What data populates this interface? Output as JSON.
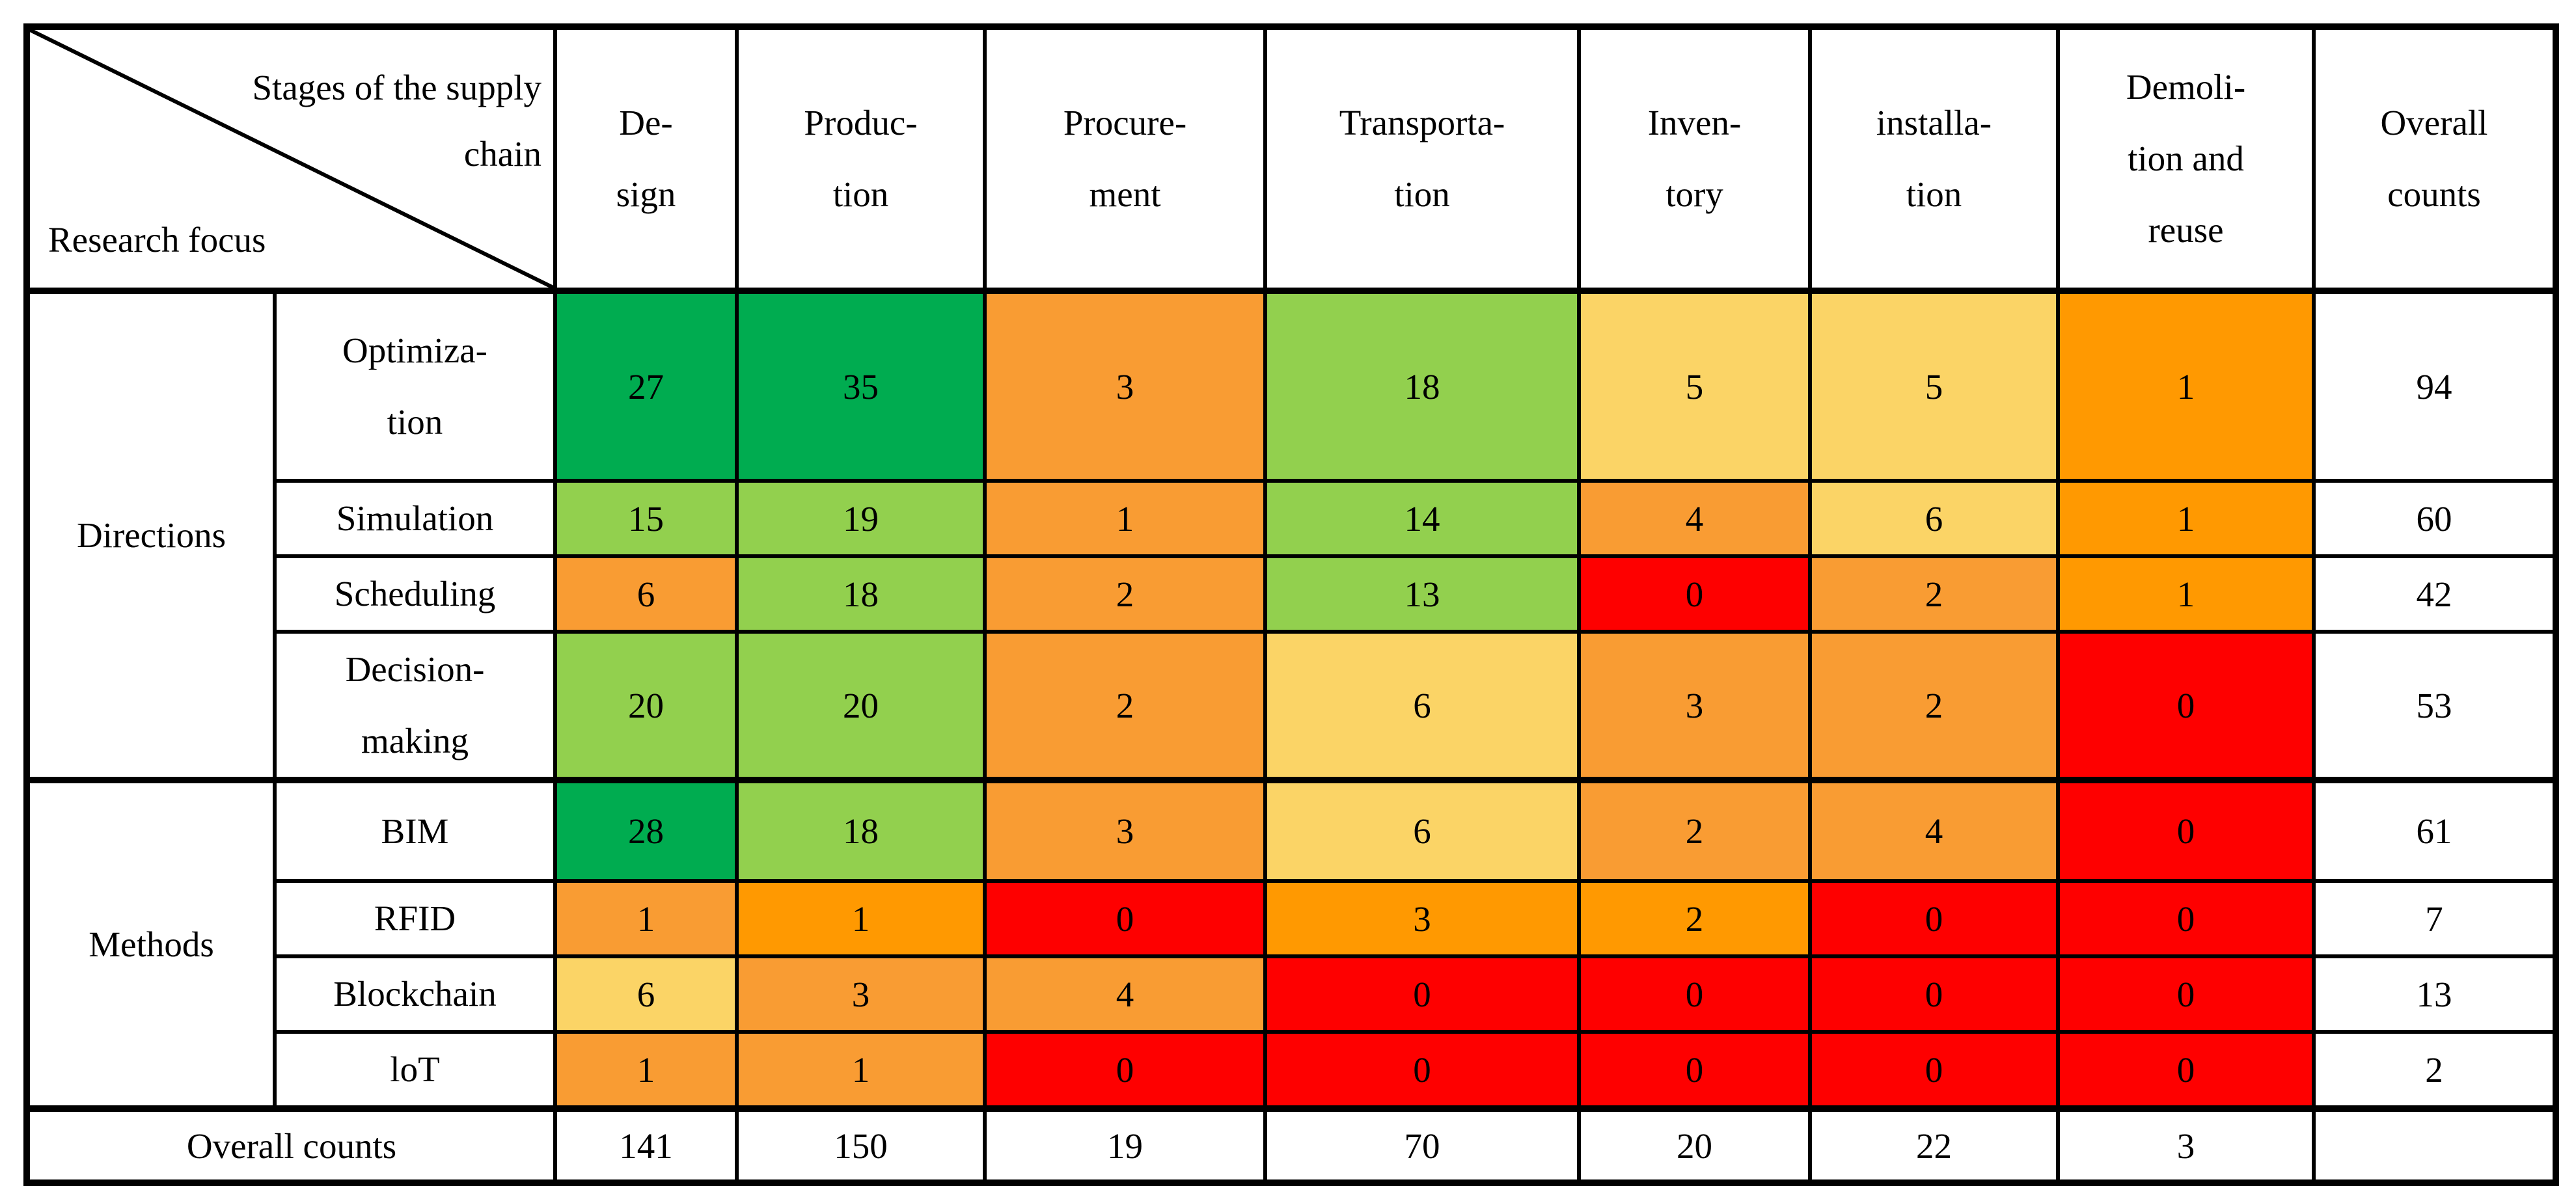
{
  "table": {
    "corner": {
      "top_label": "Stages of the supply\nchain",
      "bottom_label": "Research focus"
    },
    "columns": [
      "De-\nsign",
      "Produc-\ntion",
      "Procure-\nment",
      "Transporta-\ntion",
      "Inven-\ntory",
      "installa-\ntion",
      "Demoli-\ntion and\nreuse",
      "Overall\ncounts"
    ],
    "groups": [
      {
        "label": "Directions",
        "rows": [
          {
            "label": "Optimiza-\ntion",
            "values": [
              27,
              35,
              3,
              18,
              5,
              5,
              1,
              94
            ],
            "colors": [
              "dg",
              "dg",
              "o",
              "lg",
              "y",
              "y",
              "so",
              "w"
            ]
          },
          {
            "label": "Simulation",
            "values": [
              15,
              19,
              1,
              14,
              4,
              6,
              1,
              60
            ],
            "colors": [
              "lg",
              "lg",
              "o",
              "lg",
              "o",
              "y",
              "so",
              "w"
            ]
          },
          {
            "label": "Scheduling",
            "values": [
              6,
              18,
              2,
              13,
              0,
              2,
              1,
              42
            ],
            "colors": [
              "o",
              "lg",
              "o",
              "lg",
              "r",
              "o",
              "so",
              "w"
            ]
          },
          {
            "label": "Decision-\nmaking",
            "values": [
              20,
              20,
              2,
              6,
              3,
              2,
              0,
              53
            ],
            "colors": [
              "lg",
              "lg",
              "o",
              "y",
              "o",
              "o",
              "r",
              "w"
            ]
          }
        ]
      },
      {
        "label": "Methods",
        "rows": [
          {
            "label": "BIM",
            "values": [
              28,
              18,
              3,
              6,
              2,
              4,
              0,
              61
            ],
            "colors": [
              "dg",
              "lg",
              "o",
              "y",
              "o",
              "o",
              "r",
              "w"
            ]
          },
          {
            "label": "RFID",
            "values": [
              1,
              1,
              0,
              3,
              2,
              0,
              0,
              7
            ],
            "colors": [
              "o",
              "so",
              "r",
              "so",
              "so",
              "r",
              "r",
              "w"
            ]
          },
          {
            "label": "Blockchain",
            "values": [
              6,
              3,
              4,
              0,
              0,
              0,
              0,
              13
            ],
            "colors": [
              "y",
              "o",
              "o",
              "r",
              "r",
              "r",
              "r",
              "w"
            ]
          },
          {
            "label": "loT",
            "values": [
              1,
              1,
              0,
              0,
              0,
              0,
              0,
              2
            ],
            "colors": [
              "o",
              "o",
              "r",
              "r",
              "r",
              "r",
              "r",
              "w"
            ]
          }
        ]
      }
    ],
    "footer": {
      "label": "Overall counts",
      "values": [
        "141",
        "150",
        "19",
        "70",
        "20",
        "22",
        "3",
        ""
      ]
    },
    "palette": {
      "dg": "#00AC50",
      "lg": "#92D04E",
      "o": "#F99C33",
      "so": "#FF9901",
      "y": "#FBD466",
      "r": "#FE0000",
      "w": "#FFFFFF"
    }
  },
  "chart_data": {
    "type": "heatmap",
    "title": "Stages of the supply chain vs Research focus",
    "x_categories": [
      "Design",
      "Production",
      "Procurement",
      "Transportation",
      "Inventory",
      "installation",
      "Demolition and reuse"
    ],
    "y_categories": [
      "Optimization",
      "Simulation",
      "Scheduling",
      "Decision-making",
      "BIM",
      "RFID",
      "Blockchain",
      "loT"
    ],
    "y_groups": [
      {
        "name": "Directions",
        "rows": [
          "Optimization",
          "Simulation",
          "Scheduling",
          "Decision-making"
        ]
      },
      {
        "name": "Methods",
        "rows": [
          "BIM",
          "RFID",
          "Blockchain",
          "loT"
        ]
      }
    ],
    "values": [
      [
        27,
        35,
        3,
        18,
        5,
        5,
        1
      ],
      [
        15,
        19,
        1,
        14,
        4,
        6,
        1
      ],
      [
        6,
        18,
        2,
        13,
        0,
        2,
        1
      ],
      [
        20,
        20,
        2,
        6,
        3,
        2,
        0
      ],
      [
        28,
        18,
        3,
        6,
        2,
        4,
        0
      ],
      [
        1,
        1,
        0,
        3,
        2,
        0,
        0
      ],
      [
        6,
        3,
        4,
        0,
        0,
        0,
        0
      ],
      [
        1,
        1,
        0,
        0,
        0,
        0,
        0
      ]
    ],
    "row_totals": [
      94,
      60,
      42,
      53,
      61,
      7,
      13,
      2
    ],
    "column_totals": [
      141,
      150,
      19,
      70,
      20,
      22,
      3
    ],
    "legend_position": "none",
    "grid": true,
    "color_scale_low_to_high": [
      "#FE0000",
      "#FF9901",
      "#F99C33",
      "#FBD466",
      "#92D04E",
      "#00AC50"
    ]
  }
}
